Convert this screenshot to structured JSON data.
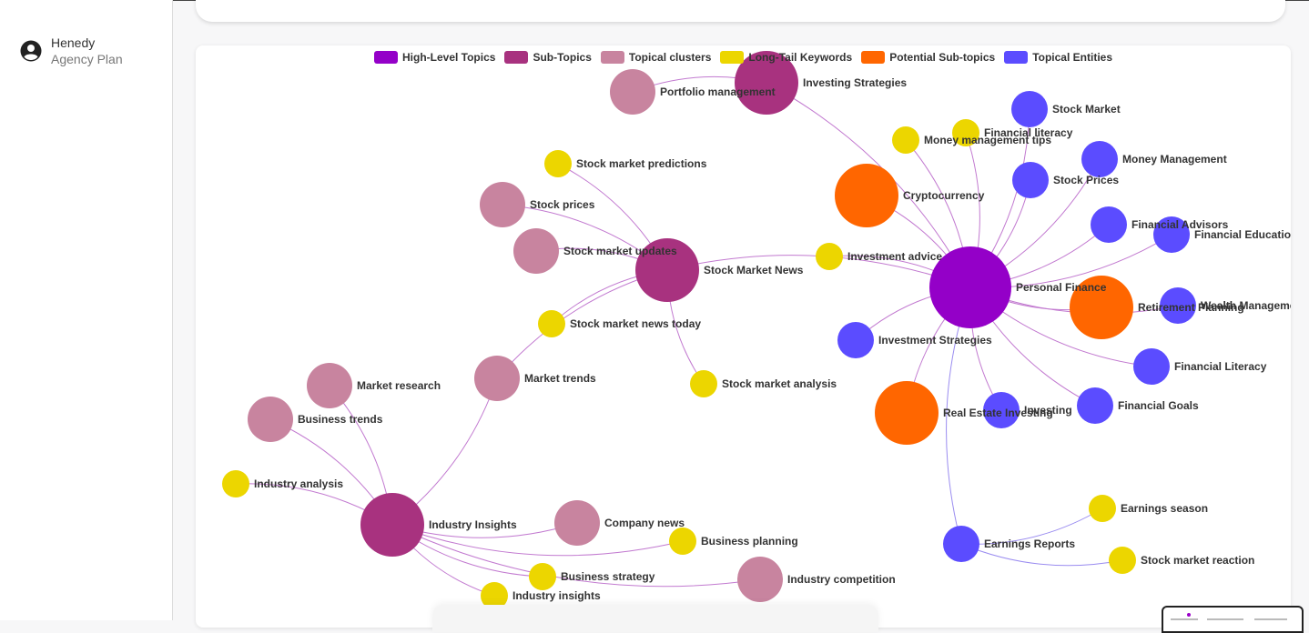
{
  "user": {
    "name": "Henedy",
    "plan": "Agency Plan",
    "avatar_icon": "account-circle-icon"
  },
  "legend": [
    {
      "label": "High-Level Topics",
      "color": "#9400c8"
    },
    {
      "label": "Sub-Topics",
      "color": "#a8327f"
    },
    {
      "label": "Topical clusters",
      "color": "#c8849f"
    },
    {
      "label": "Long-Tail Keywords",
      "color": "#ecd600"
    },
    {
      "label": "Potential Sub-topics",
      "color": "#ff6600"
    },
    {
      "label": "Topical Entities",
      "color": "#5b4cff"
    }
  ],
  "graph": {
    "nodes": [
      {
        "id": "pf",
        "label": "Personal Finance",
        "type": "High-Level Topics"
      },
      {
        "id": "is",
        "label": "Investing Strategies",
        "type": "Sub-Topics"
      },
      {
        "id": "smn",
        "label": "Stock Market News",
        "type": "Sub-Topics"
      },
      {
        "id": "ii",
        "label": "Industry Insights",
        "type": "Sub-Topics"
      },
      {
        "id": "pm",
        "label": "Portfolio management",
        "type": "Topical clusters"
      },
      {
        "id": "sp",
        "label": "Stock prices",
        "type": "Topical clusters"
      },
      {
        "id": "smu",
        "label": "Stock market updates",
        "type": "Topical clusters"
      },
      {
        "id": "mt",
        "label": "Market trends",
        "type": "Topical clusters"
      },
      {
        "id": "mr",
        "label": "Market research",
        "type": "Topical clusters"
      },
      {
        "id": "bt",
        "label": "Business trends",
        "type": "Topical clusters"
      },
      {
        "id": "cn",
        "label": "Company news",
        "type": "Topical clusters"
      },
      {
        "id": "ic",
        "label": "Industry competition",
        "type": "Topical clusters"
      },
      {
        "id": "smp",
        "label": "Stock market predictions",
        "type": "Long-Tail Keywords"
      },
      {
        "id": "smnt",
        "label": "Stock market news today",
        "type": "Long-Tail Keywords"
      },
      {
        "id": "sma",
        "label": "Stock market analysis",
        "type": "Long-Tail Keywords"
      },
      {
        "id": "ia",
        "label": "Industry analysis",
        "type": "Long-Tail Keywords"
      },
      {
        "id": "bp",
        "label": "Business planning",
        "type": "Long-Tail Keywords"
      },
      {
        "id": "bs",
        "label": "Business strategy",
        "type": "Long-Tail Keywords"
      },
      {
        "id": "ins",
        "label": "Industry insights",
        "type": "Long-Tail Keywords"
      },
      {
        "id": "mmt",
        "label": "Money management tips",
        "type": "Long-Tail Keywords"
      },
      {
        "id": "flk",
        "label": "Financial literacy",
        "type": "Long-Tail Keywords"
      },
      {
        "id": "iad",
        "label": "Investment advice",
        "type": "Long-Tail Keywords"
      },
      {
        "id": "es",
        "label": "Earnings season",
        "type": "Long-Tail Keywords"
      },
      {
        "id": "smr",
        "label": "Stock market reaction",
        "type": "Long-Tail Keywords"
      },
      {
        "id": "cc",
        "label": "Cryptocurrency",
        "type": "Potential Sub-topics"
      },
      {
        "id": "rp",
        "label": "Retirement Planning",
        "type": "Potential Sub-topics"
      },
      {
        "id": "rei",
        "label": "Real Estate Investing",
        "type": "Potential Sub-topics"
      },
      {
        "id": "smk",
        "label": "Stock Market",
        "type": "Topical Entities"
      },
      {
        "id": "mm",
        "label": "Money Management",
        "type": "Topical Entities"
      },
      {
        "id": "spr",
        "label": "Stock Prices",
        "type": "Topical Entities"
      },
      {
        "id": "fa",
        "label": "Financial Advisors",
        "type": "Topical Entities"
      },
      {
        "id": "fe",
        "label": "Financial Education",
        "type": "Topical Entities"
      },
      {
        "id": "wm",
        "label": "Wealth Management",
        "type": "Topical Entities"
      },
      {
        "id": "fl",
        "label": "Financial Literacy",
        "type": "Topical Entities"
      },
      {
        "id": "fg",
        "label": "Financial Goals",
        "type": "Topical Entities"
      },
      {
        "id": "inv",
        "label": "Investing",
        "type": "Topical Entities"
      },
      {
        "id": "ist",
        "label": "Investment Strategies",
        "type": "Topical Entities"
      },
      {
        "id": "er",
        "label": "Earnings Reports",
        "type": "Topical Entities"
      }
    ],
    "edges": [
      [
        "pf",
        "is"
      ],
      [
        "pf",
        "smn"
      ],
      [
        "pf",
        "cc"
      ],
      [
        "pf",
        "rp"
      ],
      [
        "pf",
        "rei"
      ],
      [
        "pf",
        "smk"
      ],
      [
        "pf",
        "mm"
      ],
      [
        "pf",
        "spr"
      ],
      [
        "pf",
        "fa"
      ],
      [
        "pf",
        "fe"
      ],
      [
        "pf",
        "wm"
      ],
      [
        "pf",
        "fl"
      ],
      [
        "pf",
        "fg"
      ],
      [
        "pf",
        "inv"
      ],
      [
        "pf",
        "ist"
      ],
      [
        "pf",
        "mmt"
      ],
      [
        "pf",
        "flk"
      ],
      [
        "pf",
        "iad"
      ],
      [
        "pf",
        "er"
      ],
      [
        "is",
        "pm"
      ],
      [
        "smn",
        "sp"
      ],
      [
        "smn",
        "smu"
      ],
      [
        "smn",
        "smnt"
      ],
      [
        "smn",
        "sma"
      ],
      [
        "smn",
        "mt"
      ],
      [
        "smn",
        "smp"
      ],
      [
        "ii",
        "mt"
      ],
      [
        "ii",
        "mr"
      ],
      [
        "ii",
        "bt"
      ],
      [
        "ii",
        "ia"
      ],
      [
        "ii",
        "cn"
      ],
      [
        "ii",
        "bs"
      ],
      [
        "ii",
        "ins"
      ],
      [
        "ii",
        "bp"
      ],
      [
        "ii",
        "ic"
      ],
      [
        "er",
        "es"
      ],
      [
        "er",
        "smr"
      ]
    ]
  }
}
